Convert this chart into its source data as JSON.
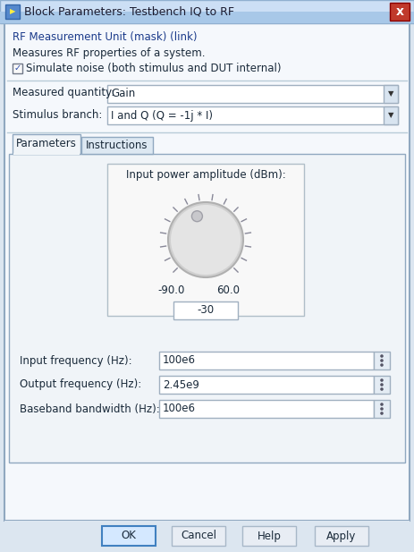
{
  "title": "Block Parameters: Testbench IQ to RF",
  "title_bar_color_top": "#ccdff5",
  "title_bar_color_bot": "#a8c8e8",
  "close_btn_color": "#c0392b",
  "bg_color": "#dce6f0",
  "panel_bg": "#f0f4f8",
  "inner_bg": "#f5f8fc",
  "white": "#ffffff",
  "header_text1": "RF Measurement Unit (mask) (link)",
  "header_text2": "Measures RF properties of a system.",
  "checkbox_label": "Simulate noise (both stimulus and DUT internal)",
  "label_mq": "Measured quantity:",
  "dropdown_mq": "Gain",
  "label_sb": "Stimulus branch:",
  "dropdown_sb": "I and Q (Q = -1j * I)",
  "tab1": "Parameters",
  "tab2": "Instructions",
  "knob_label": "Input power amplitude (dBm):",
  "knob_min": "-90.0",
  "knob_max": "60.0",
  "knob_value": "-30",
  "field1_label": "Input frequency (Hz):",
  "field1_value": "100e6",
  "field2_label": "Output frequency (Hz):",
  "field2_value": "2.45e9",
  "field3_label": "Baseband bandwidth (Hz):",
  "field3_value": "100e6",
  "btn_ok": "OK",
  "btn_cancel": "Cancel",
  "btn_help": "Help",
  "btn_apply": "Apply",
  "text_color": "#1a2a3a",
  "link_color": "#1a3a8a",
  "border_color": "#a0b4c8",
  "separator_color": "#b8ccd8",
  "tab_active_bg": "#f0f4f8",
  "tab_inactive_bg": "#dde8f2",
  "knob_outer": "#d0d0d0",
  "knob_inner": "#e4e4e4",
  "knob_dot": "#b0b0b8",
  "tick_color": "#888898",
  "field_bg": "#ffffff",
  "menubtn_bg": "#e4ecf4",
  "btn_ok_bg": "#d4e8ff",
  "btn_ok_border": "#4080c0",
  "btn_bg": "#e8edf4",
  "btn_border": "#a8b8c8",
  "dropdown_bg": "#ffffff",
  "dropdown_arrow_bg": "#d8e4f0"
}
